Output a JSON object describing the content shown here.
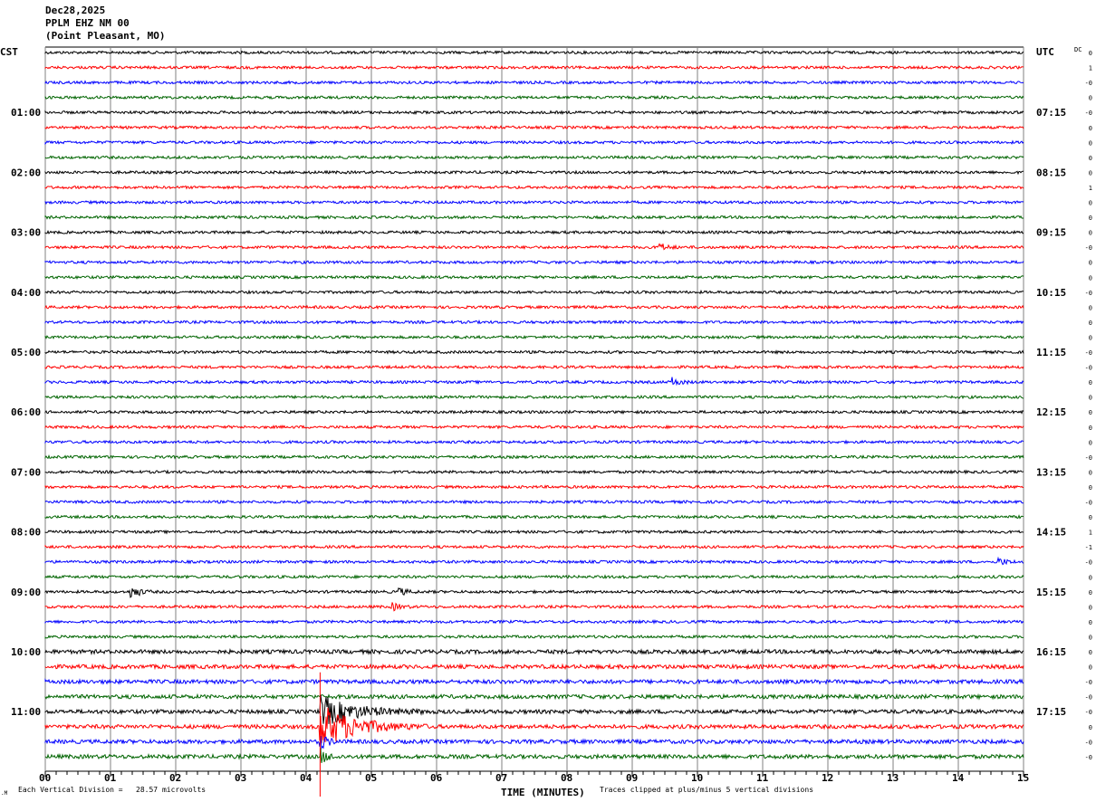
{
  "header": {
    "date": "Dec28,2025",
    "station": "PPLM EHZ NM 00",
    "location": "(Point Pleasant, MO)"
  },
  "left_tz": "CST",
  "right_tz": "UTC",
  "dc_label": "DC",
  "footer": {
    "scale_note": "Each Vertical Division =   28.57 microvolts",
    "clip_note": "Traces clipped at plus/minus 5 vertical divisions",
    "corner_mark": ".M"
  },
  "chart_data": {
    "type": "line",
    "subtype": "helicorder",
    "xlabel": "TIME (MINUTES)",
    "xlim": [
      0,
      15
    ],
    "x_ticks": [
      "00",
      "01",
      "02",
      "03",
      "04",
      "05",
      "06",
      "07",
      "08",
      "09",
      "10",
      "11",
      "12",
      "13",
      "14",
      "15"
    ],
    "grid": true,
    "trace_colors": [
      "#000000",
      "#ff0000",
      "#0000ff",
      "#006400"
    ],
    "left_hour_labels": [
      "",
      "01:00",
      "02:00",
      "03:00",
      "04:00",
      "05:00",
      "06:00",
      "07:00",
      "08:00",
      "09:00",
      "10:00",
      "11:00"
    ],
    "right_hour_labels": [
      "",
      "07:15",
      "08:15",
      "09:15",
      "10:15",
      "11:15",
      "12:15",
      "13:15",
      "14:15",
      "15:15",
      "16:15",
      "17:15"
    ],
    "dc_offsets": [
      "0",
      "1",
      "-0",
      "0",
      "-0",
      "0",
      "0",
      "0",
      "0",
      "1",
      "0",
      "0",
      "0",
      "-0",
      "0",
      "0",
      "-0",
      "0",
      "0",
      "0",
      "-0",
      "-0",
      "0",
      "0",
      "0",
      "0",
      "0",
      "-0",
      "0",
      "0",
      "-0",
      "0",
      "1",
      "-1",
      "-0",
      "0",
      "0",
      "0",
      "0",
      "0",
      "0",
      "0",
      "-0",
      "-0",
      "-0",
      "0",
      "-0",
      "-0"
    ],
    "events": [
      {
        "trace": 13,
        "minute": 9.4,
        "amplitude": "small"
      },
      {
        "trace": 22,
        "minute": 9.6,
        "amplitude": "small"
      },
      {
        "trace": 34,
        "minute": 14.6,
        "amplitude": "small"
      },
      {
        "trace": 36,
        "minute": 1.3,
        "amplitude": "medium"
      },
      {
        "trace": 36,
        "minute": 5.4,
        "amplitude": "small"
      },
      {
        "trace": 37,
        "minute": 5.3,
        "amplitude": "small"
      },
      {
        "trace": 44,
        "minute": 4.2,
        "amplitude": "large"
      },
      {
        "trace": 45,
        "minute": 4.2,
        "amplitude": "clipped"
      },
      {
        "trace": 46,
        "minute": 4.2,
        "amplitude": "medium"
      },
      {
        "trace": 47,
        "minute": 4.2,
        "amplitude": "medium"
      }
    ]
  }
}
